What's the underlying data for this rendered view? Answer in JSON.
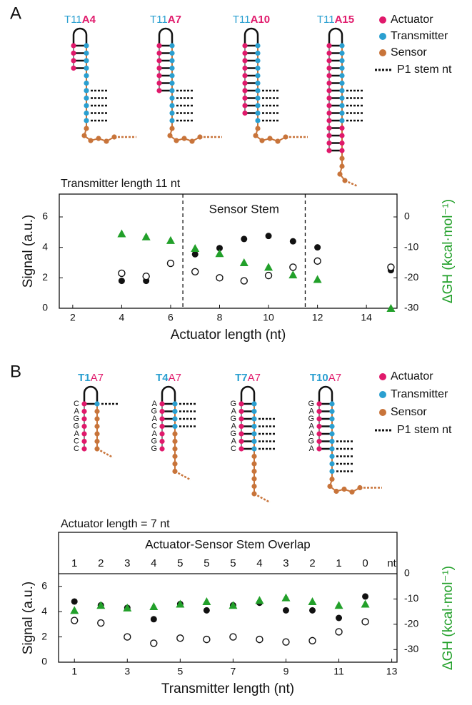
{
  "panels": [
    {
      "label": "A",
      "hairpins": [
        {
          "transmitter": "T11",
          "actuator": "A4"
        },
        {
          "transmitter": "T11",
          "actuator": "A7"
        },
        {
          "transmitter": "T11",
          "actuator": "A10"
        },
        {
          "transmitter": "T11",
          "actuator": "A15"
        }
      ],
      "legend": [
        "Actuator",
        "Transmitter",
        "Sensor",
        "P1 stem nt"
      ]
    },
    {
      "label": "B",
      "hairpins": [
        {
          "transmitter": "T1",
          "actuator": "A7",
          "sequence": [
            "C",
            "A",
            "G",
            "G",
            "A",
            "C",
            "C"
          ]
        },
        {
          "transmitter": "T4",
          "actuator": "A7",
          "sequence": [
            "A",
            "G",
            "A",
            "C",
            "A",
            "G",
            "G"
          ]
        },
        {
          "transmitter": "T7",
          "actuator": "A7",
          "sequence": [
            "G",
            "A",
            "G",
            "A",
            "G",
            "A",
            "C"
          ]
        },
        {
          "transmitter": "T10",
          "actuator": "A7",
          "sequence": [
            "G",
            "A",
            "G",
            "A",
            "A",
            "G",
            "A"
          ]
        }
      ],
      "legend": [
        "Actuator",
        "Transmitter",
        "Sensor",
        "P1 stem nt"
      ]
    }
  ],
  "chart_data": [
    {
      "type": "scatter",
      "subtitle": "Transmitter length 11 nt",
      "xlabel": "Actuator length (nt)",
      "ylabel": "Signal (a.u.)",
      "y2label": "ΔGH (kcal·mol⁻¹)",
      "annotation": "Sensor Stem",
      "vlines": [
        6.5,
        11.5
      ],
      "x": [
        4,
        5,
        6,
        7,
        8,
        9,
        10,
        11,
        12,
        15
      ],
      "xlim": [
        1.45,
        15.25
      ],
      "xticks": [
        2,
        4,
        6,
        8,
        10,
        12,
        14
      ],
      "ylim": [
        0,
        7.5
      ],
      "yticks": [
        0,
        2,
        4,
        6
      ],
      "y2lim": [
        -30,
        7.5
      ],
      "y2ticks": [
        0,
        -10,
        -20,
        -30
      ],
      "series": [
        {
          "marker": "circle",
          "color": "#111111",
          "values": [
            1.8,
            1.8,
            null,
            3.55,
            3.95,
            4.55,
            4.75,
            4.4,
            4.0,
            2.5
          ]
        },
        {
          "marker": "circle-open",
          "color": "#111111",
          "values": [
            2.3,
            2.1,
            2.95,
            2.4,
            2.0,
            1.8,
            2.15,
            2.7,
            3.1,
            2.7
          ]
        },
        {
          "marker": "triangle",
          "color": "#22a02a",
          "axis": "y2",
          "values": [
            -5.5,
            -6.5,
            -7.7,
            -10.3,
            -12,
            -15,
            -16.5,
            -19,
            -20.5,
            -30
          ]
        }
      ]
    },
    {
      "type": "scatter",
      "subtitle": "Actuator length = 7 nt",
      "xlabel": "Transmitter length (nt)",
      "ylabel": "Signal (a.u.)",
      "y2label": "ΔGH (kcal·mol⁻¹)",
      "top_title": "Actuator-Sensor Stem Overlap",
      "top_labels": [
        "1",
        "2",
        "3",
        "4",
        "5",
        "5",
        "5",
        "4",
        "3",
        "2",
        "1",
        "0"
      ],
      "top_unit": "nt",
      "x": [
        1,
        2,
        3,
        4,
        5,
        6,
        7,
        8,
        9,
        10,
        11,
        12
      ],
      "xlim": [
        0.4,
        13.2
      ],
      "xticks": [
        1,
        3,
        5,
        7,
        9,
        11,
        13
      ],
      "ylim": [
        0,
        7
      ],
      "yticks": [
        0,
        2,
        4,
        6
      ],
      "y2lim": [
        -35,
        0
      ],
      "y2ticks": [
        0,
        -10,
        -20,
        -30
      ],
      "series": [
        {
          "marker": "circle",
          "color": "#111111",
          "values": [
            4.8,
            4.5,
            4.3,
            3.4,
            4.6,
            4.1,
            4.5,
            4.7,
            4.1,
            4.1,
            3.5,
            5.2
          ]
        },
        {
          "marker": "circle-open",
          "color": "#111111",
          "values": [
            3.3,
            3.1,
            2.0,
            1.5,
            1.9,
            1.8,
            2.0,
            1.8,
            1.6,
            1.7,
            2.4,
            3.2
          ]
        },
        {
          "marker": "triangle",
          "color": "#22a02a",
          "axis": "y2",
          "values": [
            -14.5,
            -12.5,
            -13.5,
            -13,
            -12,
            -11,
            -12.5,
            -10.5,
            -9.5,
            -11,
            -12.5,
            -12
          ]
        }
      ]
    }
  ]
}
